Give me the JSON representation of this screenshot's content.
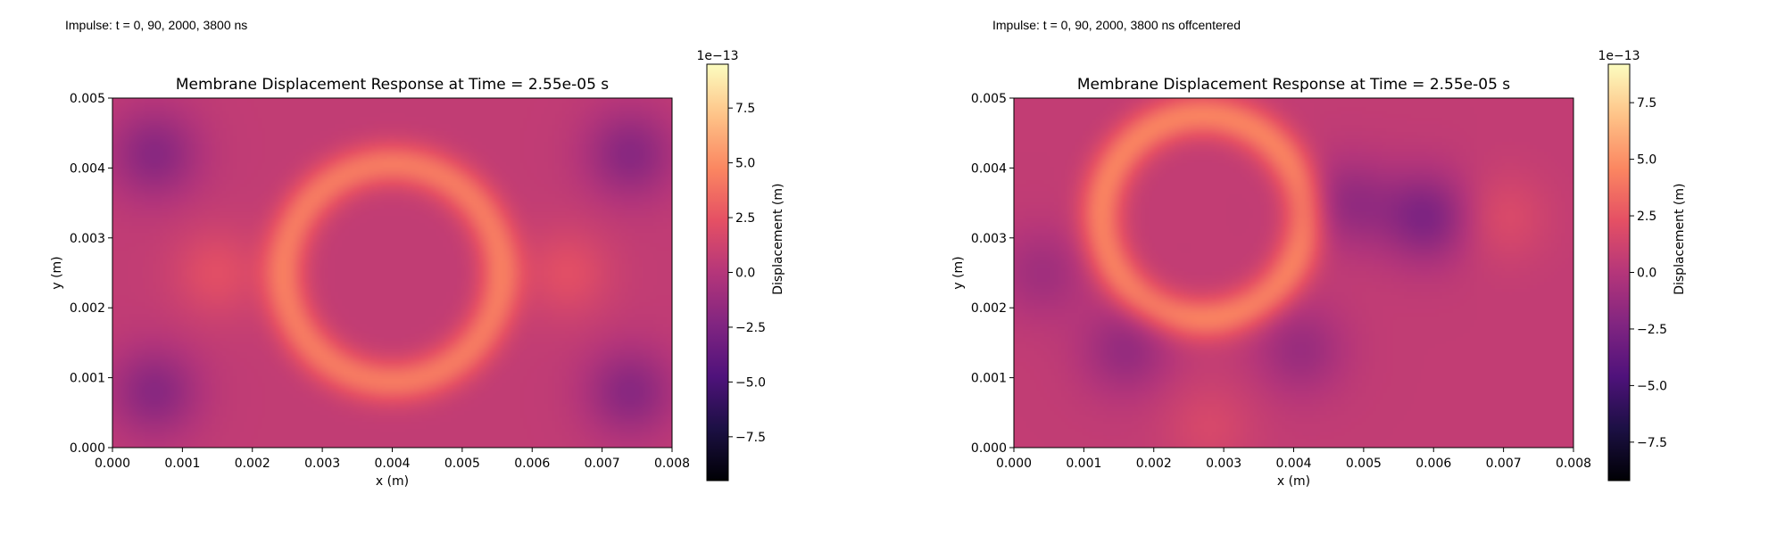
{
  "panels": [
    {
      "caption": "Impulse: t = 0, 90, 2000, 3800 ns",
      "chart_data": {
        "type": "heatmap",
        "title": "Membrane Displacement Response at Time = 2.55e-05 s",
        "xlabel": "x (m)",
        "ylabel": "y (m)",
        "xlim": [
          0,
          0.008
        ],
        "ylim": [
          0,
          0.005
        ],
        "xticks": [
          "0.000",
          "0.001",
          "0.002",
          "0.003",
          "0.004",
          "0.005",
          "0.006",
          "0.007",
          "0.008"
        ],
        "yticks": [
          "0.000",
          "0.001",
          "0.002",
          "0.003",
          "0.004",
          "0.005"
        ],
        "colormap": "magma",
        "colorbar": {
          "label": "Displacement (m)",
          "offset_text": "1e−13",
          "range": [
            -9.5,
            9.5
          ],
          "ticks": [
            "−7.5",
            "−5.0",
            "−2.5",
            "0.0",
            "2.5",
            "5.0",
            "7.5"
          ]
        },
        "features": [
          {
            "kind": "ring",
            "cx": 0.004,
            "cy": 0.0025,
            "r": 0.00155,
            "amp": 3.6
          },
          {
            "kind": "spot",
            "x": 0.0006,
            "y": 0.0042,
            "amp": -2.6
          },
          {
            "kind": "spot",
            "x": 0.0074,
            "y": 0.0042,
            "amp": -2.6
          },
          {
            "kind": "spot",
            "x": 0.0006,
            "y": 0.0008,
            "amp": -2.6
          },
          {
            "kind": "spot",
            "x": 0.0074,
            "y": 0.0008,
            "amp": -2.6
          },
          {
            "kind": "spot",
            "x": 0.0015,
            "y": 0.0025,
            "amp": 1.6
          },
          {
            "kind": "spot",
            "x": 0.0065,
            "y": 0.0025,
            "amp": 1.6
          }
        ]
      }
    },
    {
      "caption": "Impulse: t = 0, 90, 2000, 3800 ns offcentered",
      "chart_data": {
        "type": "heatmap",
        "title": "Membrane Displacement Response at Time = 2.55e-05 s",
        "xlabel": "x (m)",
        "ylabel": "y (m)",
        "xlim": [
          0,
          0.008
        ],
        "ylim": [
          0,
          0.005
        ],
        "xticks": [
          "0.000",
          "0.001",
          "0.002",
          "0.003",
          "0.004",
          "0.005",
          "0.006",
          "0.007",
          "0.008"
        ],
        "yticks": [
          "0.000",
          "0.001",
          "0.002",
          "0.003",
          "0.004",
          "0.005"
        ],
        "colormap": "magma",
        "colorbar": {
          "label": "Displacement (m)",
          "offset_text": "1e−13",
          "range": [
            -9.2,
            9.2
          ],
          "ticks": [
            "−7.5",
            "−5.0",
            "−2.5",
            "0.0",
            "2.5",
            "5.0",
            "7.5"
          ]
        },
        "features": [
          {
            "kind": "ring",
            "cx": 0.0027,
            "cy": 0.0033,
            "r": 0.00145,
            "amp": 3.8
          },
          {
            "kind": "spot",
            "x": 0.0059,
            "y": 0.0033,
            "amp": -3.0
          },
          {
            "kind": "spot",
            "x": 0.0048,
            "y": 0.0035,
            "amp": -2.0
          },
          {
            "kind": "spot",
            "x": 0.0016,
            "y": 0.0014,
            "amp": -2.0
          },
          {
            "kind": "spot",
            "x": 0.0041,
            "y": 0.0014,
            "amp": -1.8
          },
          {
            "kind": "spot",
            "x": 0.0004,
            "y": 0.0025,
            "amp": -1.5
          },
          {
            "kind": "spot",
            "x": 0.007,
            "y": 0.0033,
            "amp": 1.2
          },
          {
            "kind": "spot",
            "x": 0.0028,
            "y": 0.0003,
            "amp": 1.0
          }
        ]
      }
    }
  ]
}
